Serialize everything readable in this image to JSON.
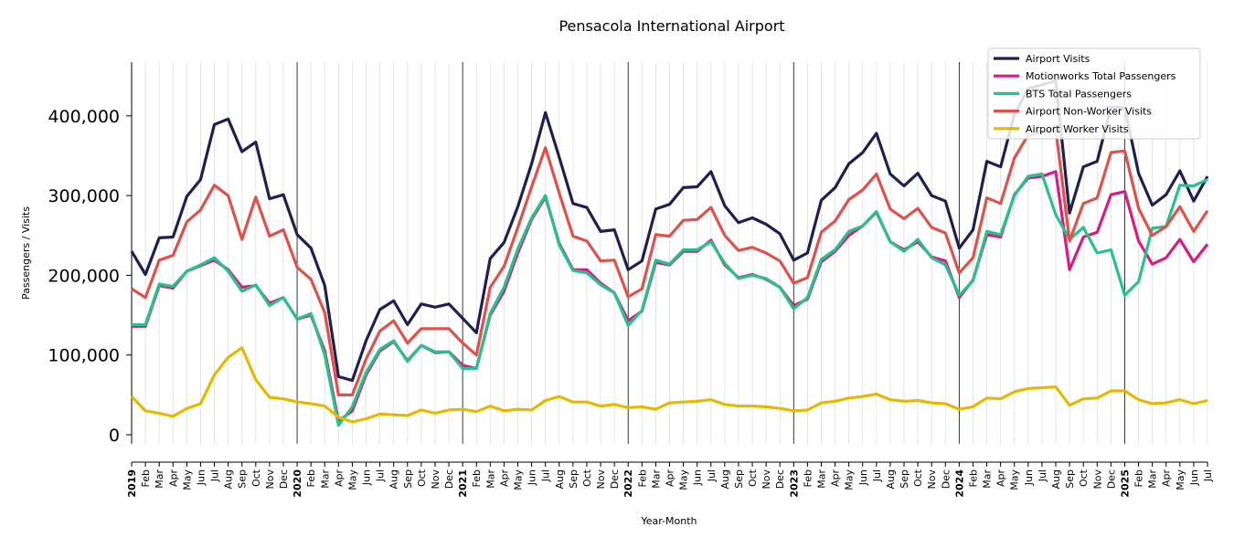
{
  "chart_data": {
    "type": "line",
    "title": "Pensacola International Airport",
    "xlabel": "Year-Month",
    "ylabel": "Passengers / Visits",
    "ylim": [
      -35000,
      470000
    ],
    "yticks": [
      0,
      100000,
      200000,
      300000,
      400000
    ],
    "ytick_labels": [
      "0",
      "100,000",
      "200,000",
      "300,000",
      "400,000"
    ],
    "start_year": 2019,
    "month_labels": [
      "Feb",
      "Mar",
      "Apr",
      "May",
      "Jun",
      "Jul",
      "Aug",
      "Sep",
      "Oct",
      "Nov",
      "Dec"
    ],
    "year_labels": [
      "2019",
      "2020",
      "2021",
      "2022",
      "2023",
      "2024",
      "2025"
    ],
    "n_points": 79,
    "legend_position": "top-right",
    "grid": "vertical monthly lines, bold year lines",
    "series": [
      {
        "name": "Airport Visits",
        "color": "#1f2050",
        "values": [
          230000,
          201000,
          247000,
          248000,
          299000,
          320000,
          389000,
          396000,
          355000,
          367000,
          296000,
          301000,
          251000,
          234000,
          187000,
          73000,
          68000,
          118000,
          157000,
          168000,
          138000,
          164000,
          160000,
          164000,
          146000,
          128000,
          221000,
          241000,
          286000,
          340000,
          404000,
          348000,
          290000,
          285000,
          255000,
          257000,
          207000,
          218000,
          283000,
          289000,
          310000,
          311000,
          330000,
          287000,
          266000,
          272000,
          264000,
          252000,
          219000,
          228000,
          294000,
          310000,
          340000,
          354000,
          378000,
          327000,
          312000,
          328000,
          300000,
          293000,
          234000,
          257000,
          343000,
          336000,
          402000,
          434000,
          439000,
          444000,
          278000,
          336000,
          343000,
          411000,
          410000,
          328000,
          288000,
          301000,
          331000,
          293000,
          324000
        ]
      },
      {
        "name": "Motionworks Total Passengers",
        "color": "#d81b85",
        "values": [
          136000,
          136000,
          187000,
          184000,
          205000,
          212000,
          219000,
          207000,
          185000,
          187000,
          165000,
          172000,
          145000,
          150000,
          105000,
          17000,
          30000,
          75000,
          105000,
          117000,
          93000,
          112000,
          103000,
          104000,
          87000,
          83000,
          150000,
          180000,
          228000,
          270000,
          298000,
          240000,
          207000,
          207000,
          190000,
          178000,
          143000,
          155000,
          216000,
          213000,
          230000,
          230000,
          244000,
          213000,
          197000,
          201000,
          195000,
          185000,
          162000,
          170000,
          217000,
          230000,
          250000,
          262000,
          279000,
          242000,
          232000,
          242000,
          223000,
          218000,
          172000,
          194000,
          251000,
          248000,
          301000,
          322000,
          324000,
          330000,
          207000,
          248000,
          254000,
          301000,
          305000,
          243000,
          214000,
          222000,
          245000,
          217000,
          239000
        ]
      },
      {
        "name": "BTS Total Passengers",
        "color": "#26c28e",
        "values": [
          138000,
          138000,
          189000,
          186000,
          205000,
          213000,
          222000,
          205000,
          180000,
          188000,
          162000,
          172000,
          145000,
          152000,
          100000,
          12000,
          35000,
          78000,
          107000,
          118000,
          92000,
          112000,
          104000,
          104000,
          83000,
          83000,
          152000,
          185000,
          233000,
          272000,
          300000,
          238000,
          206000,
          203000,
          188000,
          178000,
          137000,
          156000,
          219000,
          214000,
          232000,
          232000,
          242000,
          215000,
          196000,
          200000,
          196000,
          185000,
          158000,
          172000,
          220000,
          232000,
          255000,
          262000,
          280000,
          242000,
          230000,
          245000,
          222000,
          213000,
          175000,
          193000,
          255000,
          251000,
          300000,
          324000,
          327000,
          276000,
          245000,
          260000,
          228000,
          232000,
          175000,
          192000,
          259000,
          261000,
          313000,
          312000,
          320000
        ]
      },
      {
        "name": "Airport Non-Worker Visits",
        "color": "#e0514a",
        "values": [
          183000,
          172000,
          219000,
          225000,
          267000,
          282000,
          313000,
          300000,
          245000,
          298000,
          249000,
          257000,
          210000,
          195000,
          153000,
          50000,
          50000,
          95000,
          130000,
          143000,
          115000,
          133000,
          133000,
          133000,
          115000,
          100000,
          185000,
          211000,
          260000,
          311000,
          360000,
          303000,
          249000,
          243000,
          218000,
          219000,
          173000,
          183000,
          251000,
          249000,
          269000,
          270000,
          285000,
          250000,
          231000,
          235000,
          228000,
          218000,
          190000,
          197000,
          254000,
          268000,
          295000,
          307000,
          327000,
          283000,
          271000,
          284000,
          260000,
          253000,
          203000,
          222000,
          297000,
          290000,
          347000,
          376000,
          379000,
          383000,
          243000,
          290000,
          297000,
          354000,
          356000,
          284000,
          250000,
          261000,
          286000,
          255000,
          281000
        ]
      },
      {
        "name": "Airport Worker Visits",
        "color": "#e6b800",
        "values": [
          48000,
          30000,
          27000,
          23000,
          33000,
          39000,
          75000,
          97000,
          109000,
          69000,
          47000,
          45000,
          41000,
          39000,
          36000,
          22000,
          16000,
          20000,
          26000,
          25000,
          24000,
          31000,
          27000,
          31000,
          32000,
          29000,
          36000,
          30000,
          32000,
          31000,
          43000,
          48000,
          41000,
          41000,
          36000,
          38000,
          34000,
          35000,
          32000,
          40000,
          41000,
          42000,
          44000,
          38000,
          36000,
          36000,
          35000,
          33000,
          30000,
          31000,
          40000,
          42000,
          46000,
          48000,
          51000,
          44000,
          42000,
          43000,
          40000,
          39000,
          32000,
          35000,
          46000,
          45000,
          54000,
          58000,
          59000,
          60000,
          37000,
          45000,
          46000,
          55000,
          55000,
          44000,
          39000,
          40000,
          44000,
          39000,
          43000
        ]
      }
    ]
  }
}
